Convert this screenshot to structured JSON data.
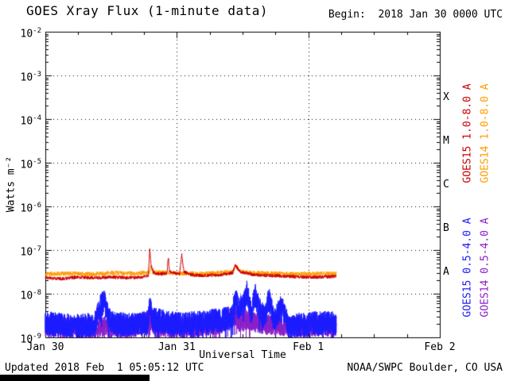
{
  "header": {
    "begin": "Begin:  2018 Jan 30 0000 UTC"
  },
  "footer": {
    "updated": "Updated 2018 Feb  1 05:05:12 UTC",
    "source": "NOAA/SWPC Boulder, CO USA"
  },
  "chart_data": {
    "type": "line",
    "title": "GOES Xray Flux (1-minute data)",
    "xlabel": "Universal Time",
    "ylabel": "Watts m⁻²",
    "x_tick_labels": [
      "Jan 30",
      "Jan 31",
      "Feb 1",
      "Feb 2"
    ],
    "x_tick_hours": [
      0,
      24,
      48,
      72
    ],
    "x_range_hours": [
      0,
      72
    ],
    "y_exponents": [
      -2,
      -3,
      -4,
      -5,
      -6,
      -7,
      -8,
      -9
    ],
    "ylim": [
      1e-09,
      0.01
    ],
    "y_scale": "log",
    "grid": {
      "h_dotted_exponents": [
        -3,
        -4,
        -5,
        -6,
        -7,
        -8
      ],
      "v_dotted_hours": [
        24,
        48
      ],
      "style": "dotted"
    },
    "flare_classes": [
      "X",
      "M",
      "C",
      "B",
      "A"
    ],
    "legend_position": "right-rotated",
    "series": [
      {
        "name": "GOES14 0.5-4.0 A",
        "satellite": "GOES14",
        "band": "short",
        "color": "#8a1fc8",
        "noise_dex": 0.24,
        "dip_dex": 0.4,
        "step_min": 1,
        "points": [
          [
            0,
            1.8e-09
          ],
          [
            4,
            1.7e-09
          ],
          [
            8,
            1.6e-09
          ],
          [
            12,
            1.8e-09
          ],
          [
            16,
            1.7e-09
          ],
          [
            19.1,
            2.6e-09
          ],
          [
            20,
            1.8e-09
          ],
          [
            24,
            1.7e-09
          ],
          [
            28,
            1.8e-09
          ],
          [
            32,
            2e-09
          ],
          [
            34.6,
            3.2e-09
          ],
          [
            35.5,
            2.2e-09
          ],
          [
            37,
            2.6e-09
          ],
          [
            38.5,
            2.2e-09
          ],
          [
            40,
            2e-09
          ],
          [
            43,
            1.9e-09
          ],
          [
            46,
            1.7e-09
          ],
          [
            49,
            1.8e-09
          ],
          [
            53.1,
            1.8e-09
          ]
        ]
      },
      {
        "name": "GOES15 0.5-4.0 A",
        "satellite": "GOES15",
        "band": "short",
        "color": "#1a1aff",
        "noise_dex": 0.28,
        "dip_dex": 0.45,
        "step_min": 1,
        "points": [
          [
            0,
            2.1e-09
          ],
          [
            3,
            1.9e-09
          ],
          [
            6,
            1.8e-09
          ],
          [
            9,
            2e-09
          ],
          [
            10.2,
            5.5e-09
          ],
          [
            10.8,
            6.5e-09
          ],
          [
            11.5,
            2.6e-09
          ],
          [
            13,
            2e-09
          ],
          [
            16,
            1.9e-09
          ],
          [
            18.8,
            2.2e-09
          ],
          [
            19.05,
            5.5e-09
          ],
          [
            19.5,
            2.6e-09
          ],
          [
            22,
            2.2e-09
          ],
          [
            24,
            2e-09
          ],
          [
            27,
            2.1e-09
          ],
          [
            30,
            2.3e-09
          ],
          [
            33,
            2.6e-09
          ],
          [
            34.2,
            3e-09
          ],
          [
            34.6,
            8.5e-09
          ],
          [
            35.3,
            4.5e-09
          ],
          [
            36.2,
            5.5e-09
          ],
          [
            36.8,
            1.15e-08
          ],
          [
            37.6,
            3.5e-09
          ],
          [
            38.3,
            9e-09
          ],
          [
            39.2,
            4e-09
          ],
          [
            40.0,
            2.8e-09
          ],
          [
            40.8,
            7.5e-09
          ],
          [
            41.8,
            2.4e-09
          ],
          [
            43.2,
            5.5e-09
          ],
          [
            44.5,
            1.6e-09
          ],
          [
            46,
            1.9e-09
          ],
          [
            48,
            2e-09
          ],
          [
            50,
            2.1e-09
          ],
          [
            53.1,
            2.2e-09
          ]
        ]
      },
      {
        "name": "GOES14 1.0-8.0 A",
        "satellite": "GOES14",
        "band": "long",
        "color": "#ff9c00",
        "noise_dex": 0.05,
        "dip_dex": 0,
        "step_min": 2,
        "points": [
          [
            0,
            2.8e-08
          ],
          [
            4,
            2.9e-08
          ],
          [
            8,
            2.8e-08
          ],
          [
            12,
            3e-08
          ],
          [
            16,
            2.9e-08
          ],
          [
            19,
            3.1e-08
          ],
          [
            19.2,
            4.2e-08
          ],
          [
            19.6,
            3.1e-08
          ],
          [
            23,
            3e-08
          ],
          [
            26,
            2.9e-08
          ],
          [
            30,
            2.9e-08
          ],
          [
            34.3,
            3.2e-08
          ],
          [
            34.7,
            4.4e-08
          ],
          [
            35.6,
            3.3e-08
          ],
          [
            38,
            3e-08
          ],
          [
            42,
            2.9e-08
          ],
          [
            46,
            2.8e-08
          ],
          [
            50,
            2.9e-08
          ],
          [
            53.1,
            2.9e-08
          ]
        ]
      },
      {
        "name": "GOES15 1.0-8.0 A",
        "satellite": "GOES15",
        "band": "long",
        "color": "#cc0000",
        "noise_dex": 0.04,
        "dip_dex": 0,
        "step_min": 2,
        "points": [
          [
            0,
            2.3e-08
          ],
          [
            3,
            2.2e-08
          ],
          [
            6,
            2.4e-08
          ],
          [
            9,
            2.3e-08
          ],
          [
            12,
            2.4e-08
          ],
          [
            15,
            2.3e-08
          ],
          [
            17.5,
            2.4e-08
          ],
          [
            18.8,
            2.6e-08
          ],
          [
            19.05,
            1.05e-07
          ],
          [
            19.3,
            4.5e-08
          ],
          [
            19.8,
            3e-08
          ],
          [
            21.0,
            2.8e-08
          ],
          [
            22.2,
            3e-08
          ],
          [
            22.45,
            6.5e-08
          ],
          [
            22.7,
            3.2e-08
          ],
          [
            24.5,
            2.8e-08
          ],
          [
            24.9,
            7.8e-08
          ],
          [
            25.3,
            3.2e-08
          ],
          [
            26.5,
            2.7e-08
          ],
          [
            29,
            2.6e-08
          ],
          [
            32,
            2.7e-08
          ],
          [
            34.2,
            3e-08
          ],
          [
            34.6,
            4.6e-08
          ],
          [
            35.5,
            3.2e-08
          ],
          [
            38,
            2.7e-08
          ],
          [
            41,
            2.6e-08
          ],
          [
            44,
            2.5e-08
          ],
          [
            47,
            2.4e-08
          ],
          [
            50,
            2.4e-08
          ],
          [
            53.1,
            2.5e-08
          ]
        ]
      }
    ]
  }
}
